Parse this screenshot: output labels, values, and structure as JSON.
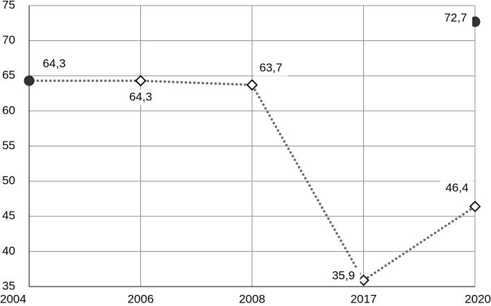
{
  "chart_data": {
    "type": "line",
    "categories": [
      "2004",
      "2006",
      "2008",
      "2017",
      "2020"
    ],
    "series": [
      {
        "color": "#666666",
        "values": [
          64.3,
          64.3,
          63.7,
          35.9,
          46.4
        ],
        "value_labels": [
          null,
          "64,3",
          "63,7",
          "35,9",
          "46,4"
        ]
      },
      {
        "color": "#333333",
        "values": [
          64.3,
          null,
          null,
          null,
          72.7
        ],
        "value_labels": [
          "64,3",
          null,
          null,
          null,
          "72,7"
        ]
      }
    ],
    "ylim": [
      35,
      75
    ],
    "yticks": [
      35,
      40,
      45,
      50,
      55,
      60,
      65,
      70,
      75
    ],
    "grid": true
  }
}
